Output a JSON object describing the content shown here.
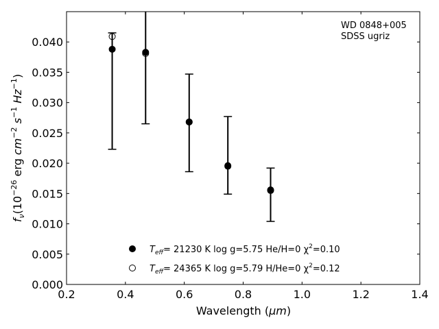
{
  "chart_data": {
    "type": "scatter",
    "xlabel": {
      "main": "Wavelength (",
      "unit": "μm",
      "close": ")"
    },
    "ylabel": {
      "flux": "f",
      "flux_sub": "ν",
      "pre": "(10",
      "exp1": "−26",
      "mid1": " erg ",
      "cm": "cm",
      "exp2": "−2",
      "s": " s",
      "exp3": "−1",
      "hz": " Hz",
      "exp4": "−1",
      "close": ")"
    },
    "xlim": [
      0.2,
      1.4
    ],
    "ylim": [
      0.0,
      0.045
    ],
    "xticks": [
      "0.2",
      "0.4",
      "0.6",
      "0.8",
      "1.0",
      "1.2",
      "1.4"
    ],
    "yticks": [
      "0.000",
      "0.005",
      "0.010",
      "0.015",
      "0.020",
      "0.025",
      "0.030",
      "0.035",
      "0.040"
    ],
    "grid": false,
    "annotation": {
      "line1": "WD 0848+005",
      "line2": "SDSS ugriz"
    },
    "legend_placement": "lower-center",
    "observed": {
      "x": [
        0.3551,
        0.4686,
        0.6166,
        0.748,
        0.8932
      ],
      "y": [
        0.0388,
        0.0383,
        0.0268,
        0.0196,
        0.0156
      ],
      "yerr_low": [
        0.0223,
        0.0265,
        0.0186,
        0.0149,
        0.0104
      ],
      "yerr_high": [
        0.0415,
        0.0452,
        0.0347,
        0.0277,
        0.0192
      ]
    },
    "series": [
      {
        "name": {
          "T": "T",
          "eff": "eff",
          "rest": "= 21230 K  log g=5.75  He/H=0  χ",
          "sq": "2",
          "chi": "=0.10"
        },
        "marker": "filled",
        "x": [
          0.3551,
          0.4686,
          0.6166,
          0.748,
          0.8932
        ],
        "y": [
          0.0388,
          0.0383,
          0.0268,
          0.0196,
          0.0156
        ]
      },
      {
        "name": {
          "T": "T",
          "eff": "eff",
          "rest": "= 24365 K  log g=5.79  H/He=0  χ",
          "sq": "2",
          "chi": "=0.12"
        },
        "marker": "open",
        "x": [
          0.3551,
          0.4686,
          0.6166,
          0.748,
          0.8932
        ],
        "y": [
          0.0409,
          0.0381,
          0.0268,
          0.0195,
          0.0155
        ]
      }
    ],
    "colors": {
      "marker": "#000000",
      "axes": "#000000",
      "background": "#ffffff"
    }
  }
}
